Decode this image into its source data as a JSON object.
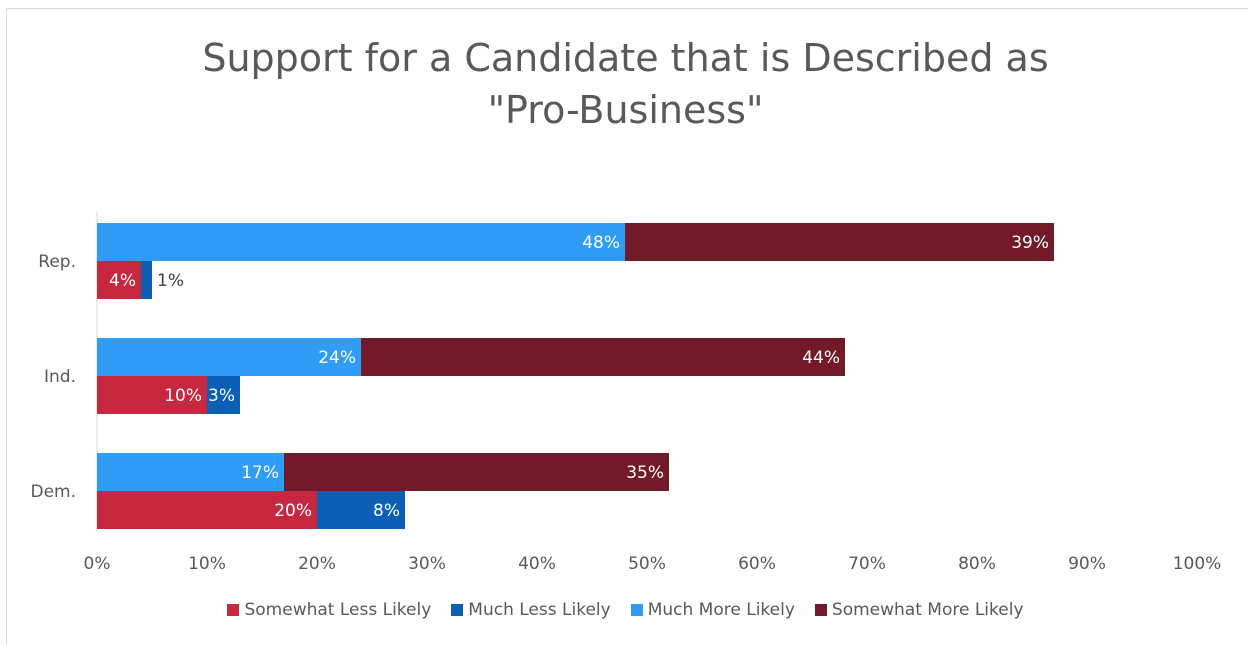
{
  "chart_data": {
    "type": "bar",
    "orientation": "horizontal",
    "title": "Support for a Candidate that is Described as \"Pro-Business\"",
    "title_lines": [
      "Support for a Candidate that is Described as",
      "\"Pro-Business\""
    ],
    "categories": [
      "Rep.",
      "Ind.",
      "Dem."
    ],
    "xlim": [
      0,
      100
    ],
    "xticks": [
      "0%",
      "10%",
      "20%",
      "30%",
      "40%",
      "50%",
      "60%",
      "70%",
      "80%",
      "90%",
      "100%"
    ],
    "grid": false,
    "legend_position": "bottom",
    "groups": [
      {
        "bar": "upper",
        "stack": [
          "Much More Likely",
          "Somewhat More Likely"
        ]
      },
      {
        "bar": "lower",
        "stack": [
          "Somewhat Less Likely",
          "Much Less Likely"
        ]
      }
    ],
    "series": [
      {
        "name": "Somewhat Less Likely",
        "color": "#C8283F",
        "values": [
          4,
          10,
          20
        ],
        "labels": [
          "4%",
          "10%",
          "20%"
        ]
      },
      {
        "name": "Much Less Likely",
        "color": "#0B5FB5",
        "values": [
          1,
          3,
          8
        ],
        "labels": [
          "1%",
          "3%",
          "8%"
        ]
      },
      {
        "name": "Much More Likely",
        "color": "#2F9CF5",
        "values": [
          48,
          24,
          17
        ],
        "labels": [
          "48%",
          "24%",
          "17%"
        ]
      },
      {
        "name": "Somewhat More Likely",
        "color": "#731A29",
        "values": [
          39,
          44,
          35
        ],
        "labels": [
          "39%",
          "44%",
          "35%"
        ]
      }
    ]
  }
}
